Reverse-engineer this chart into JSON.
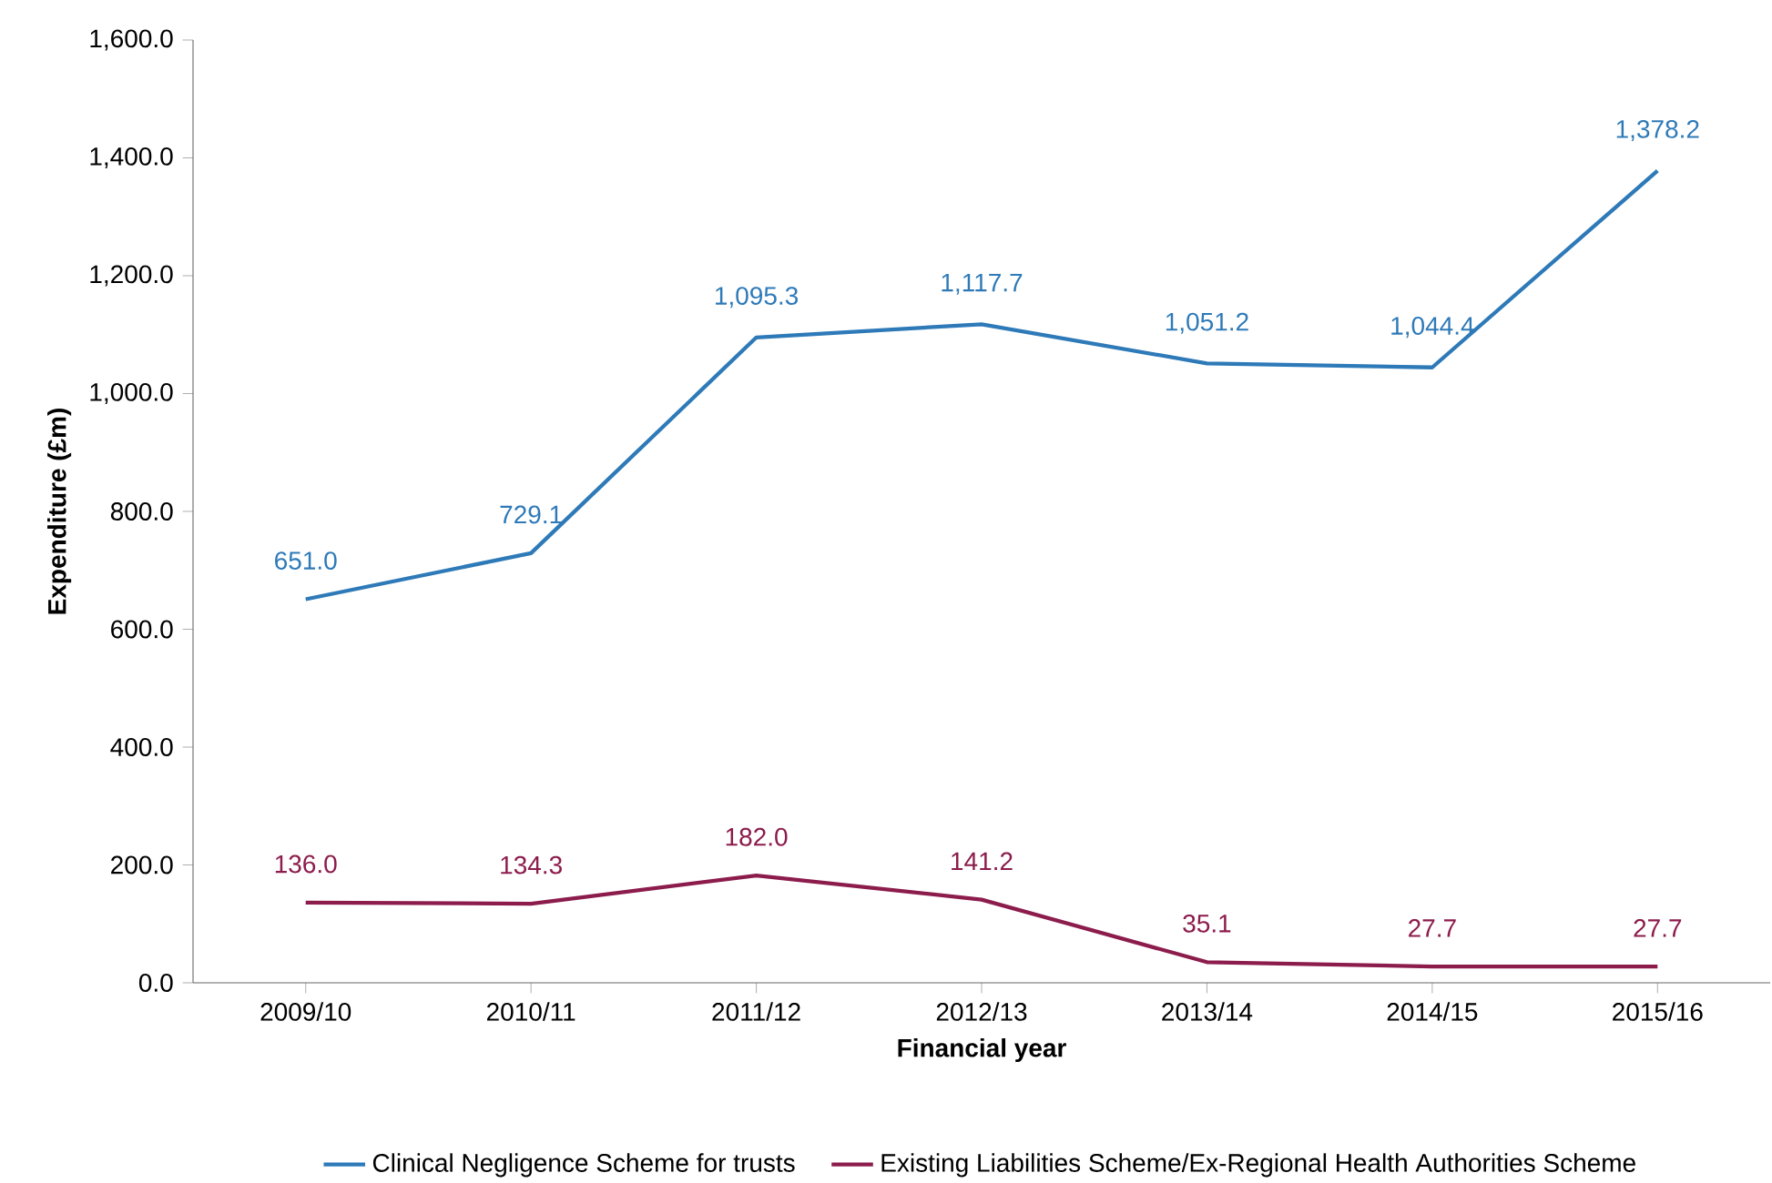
{
  "chart_data": {
    "type": "line",
    "xlabel": "Financial year",
    "ylabel": "Expenditure (£m)",
    "categories": [
      "2009/10",
      "2010/11",
      "2011/12",
      "2012/13",
      "2013/14",
      "2014/15",
      "2015/16"
    ],
    "series": [
      {
        "name": "Clinical Negligence Scheme for trusts",
        "color": "#2e7ab8",
        "values": [
          651.0,
          729.1,
          1095.3,
          1117.7,
          1051.2,
          1044.4,
          1378.2
        ],
        "value_labels": [
          "651.0",
          "729.1",
          "1,095.3",
          "1,117.7",
          "1,051.2",
          "1,044.4",
          "1,378.2"
        ]
      },
      {
        "name": "Existing Liabilities Scheme/Ex-Regional Health Authorities Scheme",
        "color": "#8c1c4c",
        "values": [
          136.0,
          134.3,
          182.0,
          141.2,
          35.1,
          27.7,
          27.7
        ],
        "value_labels": [
          "136.0",
          "134.3",
          "182.0",
          "141.2",
          "35.1",
          "27.7",
          "27.7"
        ]
      }
    ],
    "ylim": [
      0,
      1600
    ],
    "yticks": [
      {
        "value": 0,
        "label": "0.0"
      },
      {
        "value": 200,
        "label": "200.0"
      },
      {
        "value": 400,
        "label": "400.0"
      },
      {
        "value": 600,
        "label": "600.0"
      },
      {
        "value": 800,
        "label": "800.0"
      },
      {
        "value": 1000,
        "label": "1,000.0"
      },
      {
        "value": 1200,
        "label": "1,200.0"
      },
      {
        "value": 1400,
        "label": "1,400.0"
      },
      {
        "value": 1600,
        "label": "1,600.0"
      }
    ],
    "grid": false,
    "legend": "bottom",
    "marker": "none",
    "line_style": "solid"
  }
}
